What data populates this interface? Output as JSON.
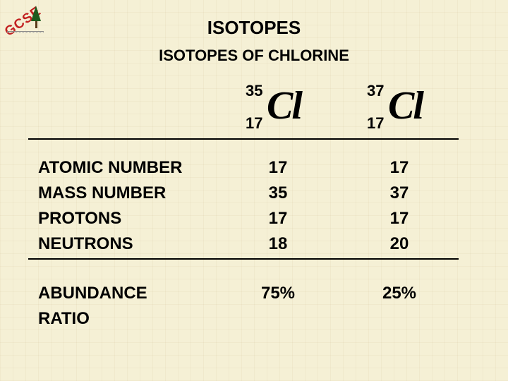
{
  "background_color": "#f5f0d5",
  "text_color": "#000000",
  "logo": {
    "text": "GCSE",
    "text_color": "#c22020",
    "tree_crown_color": "#1d5a1d",
    "tree_trunk_color": "#5a3a1a"
  },
  "title": "ISOTOPES",
  "subtitle": "ISOTOPES OF CHLORINE",
  "isotopes": [
    {
      "mass": "35",
      "atomic": "17",
      "symbol": "Cl"
    },
    {
      "mass": "37",
      "atomic": "17",
      "symbol": "Cl"
    }
  ],
  "table": {
    "type": "table",
    "columns": [
      "Cl-35",
      "Cl-37"
    ],
    "sections": [
      {
        "rows": [
          {
            "label": "ATOMIC NUMBER",
            "values": [
              "17",
              "17"
            ]
          },
          {
            "label": "MASS NUMBER",
            "values": [
              "35",
              "37"
            ]
          },
          {
            "label": "PROTONS",
            "values": [
              "17",
              "17"
            ]
          },
          {
            "label": "NEUTRONS",
            "values": [
              "18",
              "20"
            ]
          }
        ]
      },
      {
        "rows": [
          {
            "label": "ABUNDANCE",
            "values": [
              "75%",
              "25%"
            ]
          },
          {
            "label": "RATIO",
            "values": [
              "",
              ""
            ]
          }
        ]
      }
    ],
    "rule_color": "#000000",
    "label_fontsize": 24,
    "value_fontsize": 24,
    "font_weight": "900"
  }
}
